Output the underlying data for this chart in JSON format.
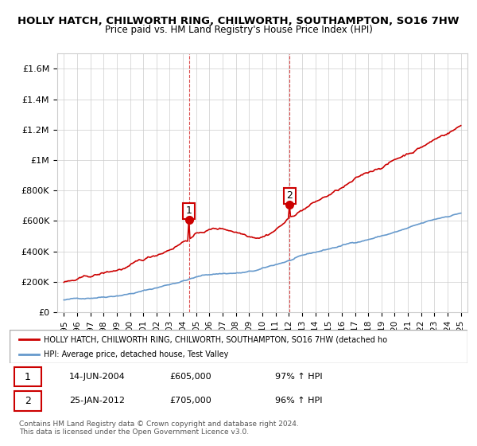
{
  "title": "HOLLY HATCH, CHILWORTH RING, CHILWORTH, SOUTHAMPTON, SO16 7HW",
  "subtitle": "Price paid vs. HM Land Registry's House Price Index (HPI)",
  "legend_line1": "HOLLY HATCH, CHILWORTH RING, CHILWORTH, SOUTHAMPTON, SO16 7HW (detached ho",
  "legend_line2": "HPI: Average price, detached house, Test Valley",
  "annotation1_label": "1",
  "annotation1_date": "14-JUN-2004",
  "annotation1_price": "£605,000",
  "annotation1_hpi": "97% ↑ HPI",
  "annotation2_label": "2",
  "annotation2_date": "25-JAN-2012",
  "annotation2_price": "£705,000",
  "annotation2_hpi": "96% ↑ HPI",
  "footnote": "Contains HM Land Registry data © Crown copyright and database right 2024.\nThis data is licensed under the Open Government Licence v3.0.",
  "red_color": "#cc0000",
  "blue_color": "#6699cc",
  "ylim": [
    0,
    1700000
  ],
  "yticks": [
    0,
    200000,
    400000,
    600000,
    800000,
    1000000,
    1200000,
    1400000,
    1600000
  ],
  "ytick_labels": [
    "£0",
    "£200K",
    "£400K",
    "£600K",
    "£800K",
    "£1M",
    "£1.2M",
    "£1.4M",
    "£1.6M"
  ],
  "x_start_year": 1995,
  "x_end_year": 2025,
  "sale1_year": 2004.45,
  "sale1_price": 605000,
  "sale2_year": 2012.07,
  "sale2_price": 705000,
  "background_color": "#ffffff",
  "grid_color": "#cccccc"
}
